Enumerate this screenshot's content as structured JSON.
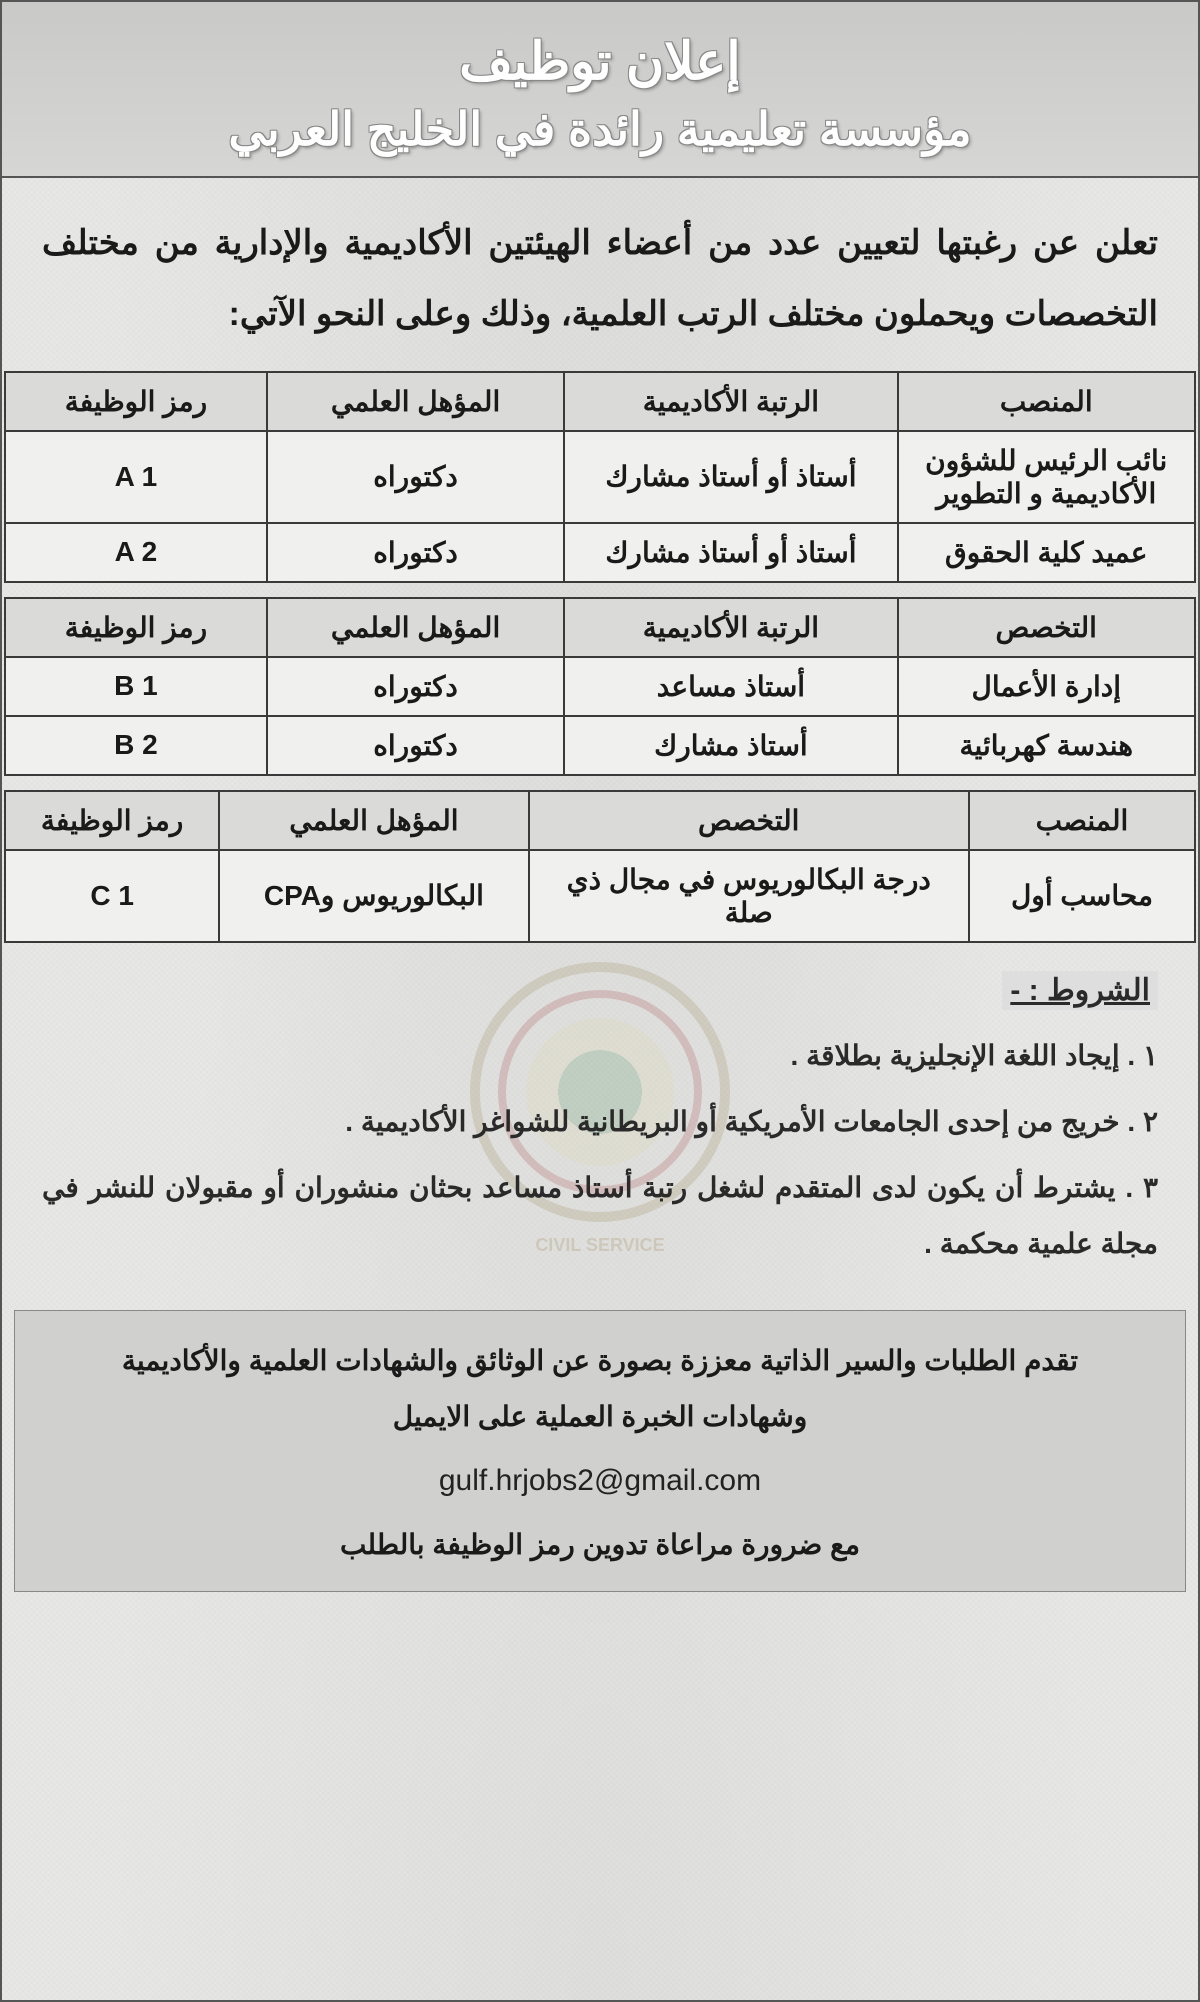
{
  "header": {
    "title": "إعلان توظيف",
    "subtitle": "مؤسسة تعليمية رائدة في الخليج العربي"
  },
  "intro": "تعلن عن رغبتها لتعيين عدد من أعضاء الهيئتين الأكاديمية والإدارية من مختلف التخصصات ويحملون مختلف الرتب العلمية، وذلك وعلى النحو الآتي:",
  "table1": {
    "headers": [
      "المنصب",
      "الرتبة الأكاديمية",
      "المؤهل العلمي",
      "رمز الوظيفة"
    ],
    "rows": [
      [
        "نائب الرئيس للشؤون الأكاديمية و التطوير",
        "أستاذ أو أستاذ مشارك",
        "دكتوراه",
        "A 1"
      ],
      [
        "عميد كلية الحقوق",
        "أستاذ أو أستاذ مشارك",
        "دكتوراه",
        "A 2"
      ]
    ],
    "col_widths": [
      "25%",
      "28%",
      "25%",
      "22%"
    ]
  },
  "table2": {
    "headers": [
      "التخصص",
      "الرتبة الأكاديمية",
      "المؤهل العلمي",
      "رمز الوظيفة"
    ],
    "rows": [
      [
        "إدارة الأعمال",
        "أستاذ مساعد",
        "دكتوراه",
        "B 1"
      ],
      [
        "هندسة كهربائية",
        "أستاذ مشارك",
        "دكتوراه",
        "B 2"
      ]
    ],
    "col_widths": [
      "25%",
      "28%",
      "25%",
      "22%"
    ]
  },
  "table3": {
    "headers": [
      "المنصب",
      "التخصص",
      "المؤهل العلمي",
      "رمز الوظيفة"
    ],
    "rows": [
      [
        "محاسب أول",
        "درجة البكالوريوس في مجال ذي صلة",
        "البكالوريوس وCPA",
        "C 1"
      ]
    ],
    "col_widths": [
      "19%",
      "37%",
      "26%",
      "18%"
    ]
  },
  "conditions": {
    "title": "الشروط : -",
    "items": [
      "١ . إيجاد اللغة الإنجليزية بطلاقة .",
      "٢ . خريج من إحدى الجامعات الأمريكية أو البريطانية للشواغر الأكاديمية .",
      "٣ . يشترط أن يكون لدى المتقدم لشغل رتبة أستاذ مساعد بحثان منشوران أو مقبولان للنشر في مجلة علمية محكمة ."
    ]
  },
  "footer": {
    "line1": "تقدم الطلبات والسير الذاتية معززة بصورة عن الوثائق والشهادات العلمية والأكاديمية",
    "line2": "وشهادات الخبرة العملية على الايميل",
    "email": "gulf.hrjobs2@gmail.com",
    "line3": "مع ضرورة مراعاة تدوين رمز الوظيفة بالطلب"
  },
  "watermark_text": "CIVIL SERVICE"
}
